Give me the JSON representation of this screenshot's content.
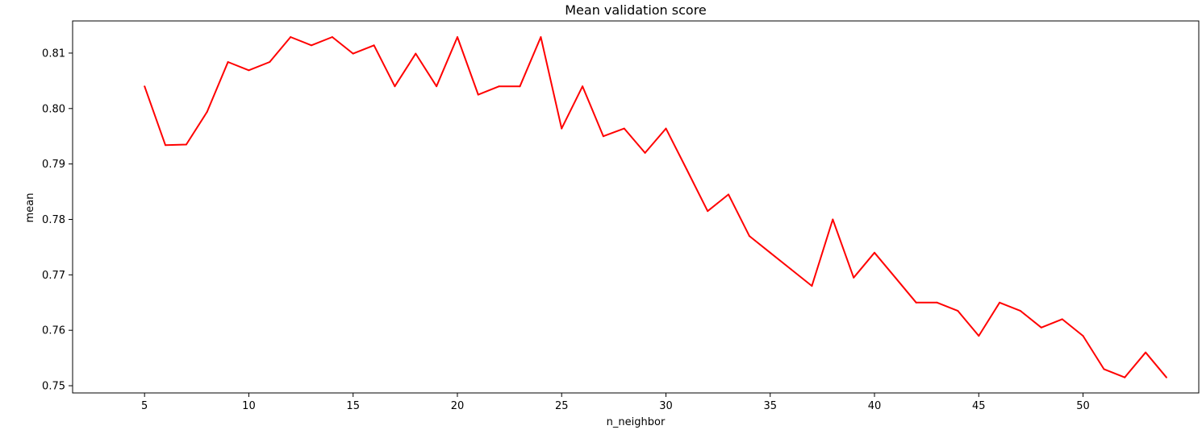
{
  "chart_data": {
    "type": "line",
    "title": "Mean validation score",
    "xlabel": "n_neighbor",
    "ylabel": "mean",
    "xlim": [
      1.55,
      55.55
    ],
    "ylim": [
      0.7487,
      0.8158
    ],
    "xticks": [
      5,
      10,
      15,
      20,
      25,
      30,
      35,
      40,
      45,
      50
    ],
    "yticks": [
      0.75,
      0.76,
      0.77,
      0.78,
      0.79,
      0.8,
      0.81
    ],
    "ytick_labels": [
      "0.75",
      "0.76",
      "0.77",
      "0.78",
      "0.79",
      "0.80",
      "0.81"
    ],
    "grid": false,
    "legend": "none",
    "line_color": "#ff0000",
    "series": [
      {
        "x": [
          5,
          6,
          7,
          8,
          9,
          10,
          11,
          12,
          13,
          14,
          15,
          16,
          17,
          18,
          19,
          20,
          21,
          22,
          23,
          24,
          25,
          26,
          27,
          28,
          29,
          30,
          31,
          32,
          33,
          34,
          35,
          36,
          37,
          38,
          39,
          40,
          41,
          42,
          43,
          44,
          45,
          46,
          47,
          48,
          49,
          50,
          51,
          52,
          53,
          54
        ],
        "values": [
          0.804,
          0.7934,
          0.7935,
          0.7994,
          0.8084,
          0.8069,
          0.8084,
          0.8129,
          0.8114,
          0.8129,
          0.8099,
          0.8114,
          0.804,
          0.8099,
          0.804,
          0.8129,
          0.8025,
          0.804,
          0.804,
          0.8129,
          0.7964,
          0.804,
          0.795,
          0.7964,
          0.792,
          0.7964,
          0.789,
          0.7815,
          0.7845,
          0.777,
          0.774,
          0.771,
          0.768,
          0.78,
          0.7695,
          0.774,
          0.7695,
          0.765,
          0.765,
          0.7635,
          0.759,
          0.765,
          0.7635,
          0.7605,
          0.762,
          0.759,
          0.753,
          0.7515,
          0.756,
          0.7515
        ]
      }
    ]
  }
}
